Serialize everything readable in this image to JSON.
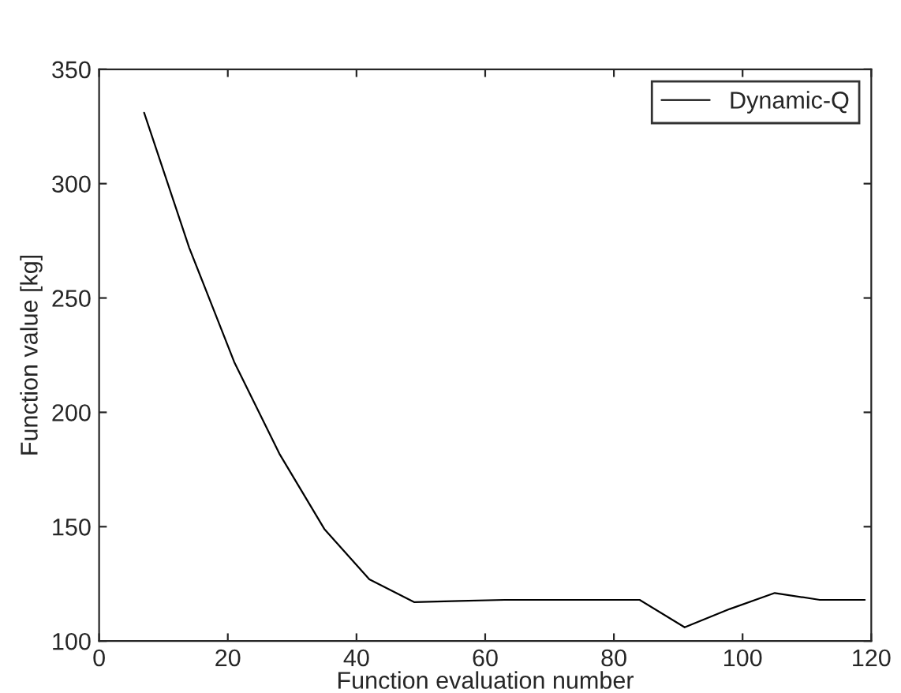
{
  "chart_data": {
    "type": "line",
    "xlabel": "Function evaluation number",
    "ylabel": "Function value [kg]",
    "x": [
      7,
      14,
      21,
      28,
      35,
      42,
      49,
      56,
      63,
      70,
      77,
      84,
      91,
      98,
      105,
      112,
      119
    ],
    "series": [
      {
        "name": "Dynamic-Q",
        "color": "#000000",
        "values": [
          331,
          272,
          222,
          182,
          149,
          127,
          117,
          117.5,
          118,
          118,
          118,
          118,
          106,
          114,
          121,
          118,
          118
        ]
      }
    ],
    "xlim": [
      0,
      120
    ],
    "xticks": [
      0,
      20,
      40,
      60,
      80,
      100,
      120
    ],
    "ylim": [
      100,
      350
    ],
    "yticks": [
      100,
      150,
      200,
      250,
      300,
      350
    ],
    "legend": "top right",
    "grid": false,
    "marker": "none",
    "line_style": "solid"
  }
}
